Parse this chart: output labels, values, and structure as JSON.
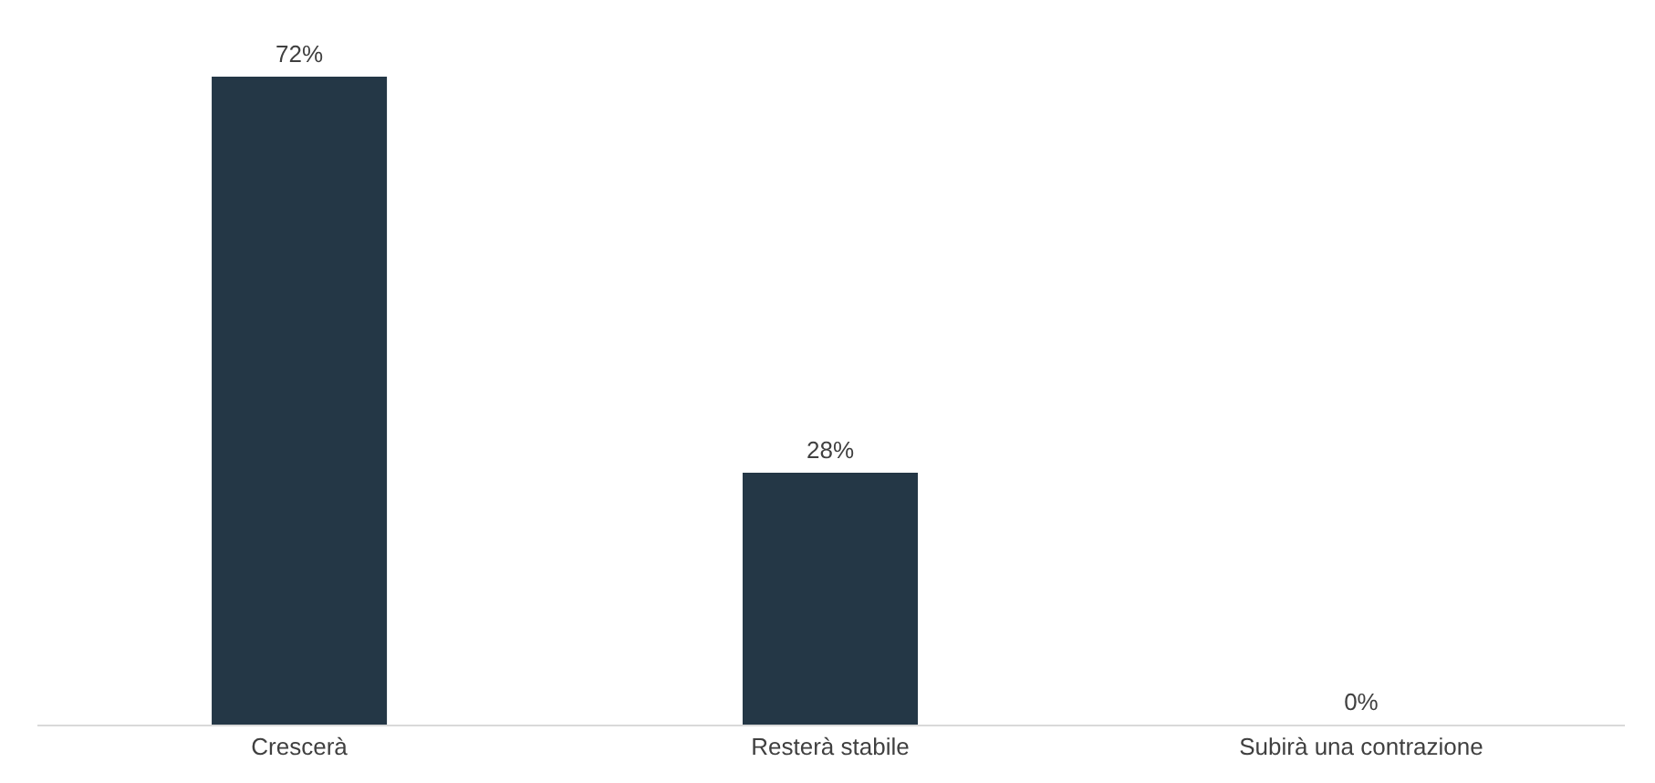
{
  "chart_data": {
    "type": "bar",
    "categories": [
      "Crescerà",
      "Resterà stabile",
      "Subirà una contrazione"
    ],
    "values": [
      72,
      28,
      0
    ],
    "value_labels": [
      "72%",
      "28%",
      "0%"
    ],
    "color": "#243746",
    "tick_labels": "x"
  }
}
